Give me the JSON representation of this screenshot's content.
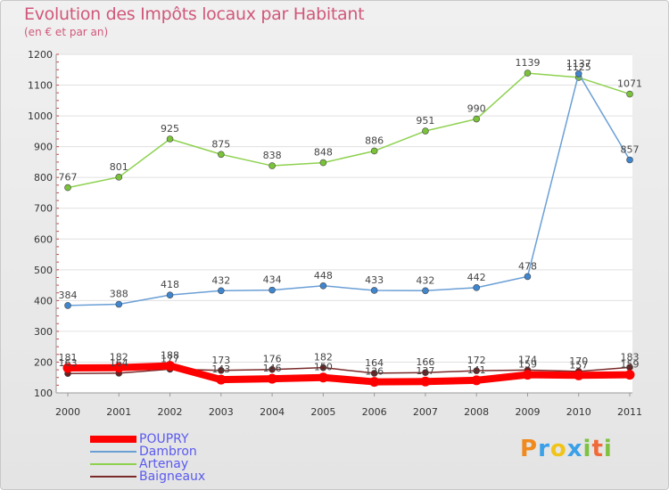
{
  "chart_data": {
    "type": "line",
    "title": "Evolution des Impôts locaux par Habitant",
    "subtitle": "(en € et par an)",
    "categories": [
      "2000",
      "2001",
      "2002",
      "2003",
      "2004",
      "2005",
      "2006",
      "2007",
      "2008",
      "2009",
      "2010",
      "2011"
    ],
    "y_ticks": [
      100,
      200,
      300,
      400,
      500,
      600,
      700,
      800,
      900,
      1000,
      1100,
      1200
    ],
    "ylim": [
      100,
      1200
    ],
    "grid": "horizontal",
    "legend": "bottom-left",
    "series": [
      {
        "name": "Artenay",
        "color": "#8ed14f",
        "marker": "#7ac23a",
        "values": [
          767,
          801,
          925,
          875,
          838,
          848,
          886,
          951,
          990,
          1139,
          1125,
          1071
        ]
      },
      {
        "name": "Dambron",
        "color": "#6a9fd6",
        "marker": "#3f86cf",
        "values": [
          384,
          388,
          418,
          432,
          434,
          448,
          433,
          432,
          442,
          478,
          1137,
          857
        ]
      },
      {
        "name": "Baigneaux",
        "color": "#7a2a2a",
        "marker": "#6b1f1f",
        "values": [
          163,
          164,
          177,
          173,
          176,
          182,
          164,
          166,
          172,
          174,
          170,
          183
        ]
      },
      {
        "name": "POUPRY",
        "color": "#ff0000",
        "marker": "#ff0000",
        "values": [
          181,
          182,
          188,
          143,
          146,
          150,
          136,
          137,
          141,
          159,
          157,
          159
        ]
      }
    ],
    "legend_order": [
      "POUPRY",
      "Dambron",
      "Artenay",
      "Baigneaux"
    ]
  },
  "logo": {
    "letters": [
      "P",
      "r",
      "o",
      "x",
      "i",
      "t",
      "i"
    ],
    "colors": [
      "#f08a1e",
      "#3aa0e8",
      "#f0c419",
      "#3aa0e8",
      "#7fc241",
      "#f06a3a",
      "#7fc241"
    ]
  }
}
